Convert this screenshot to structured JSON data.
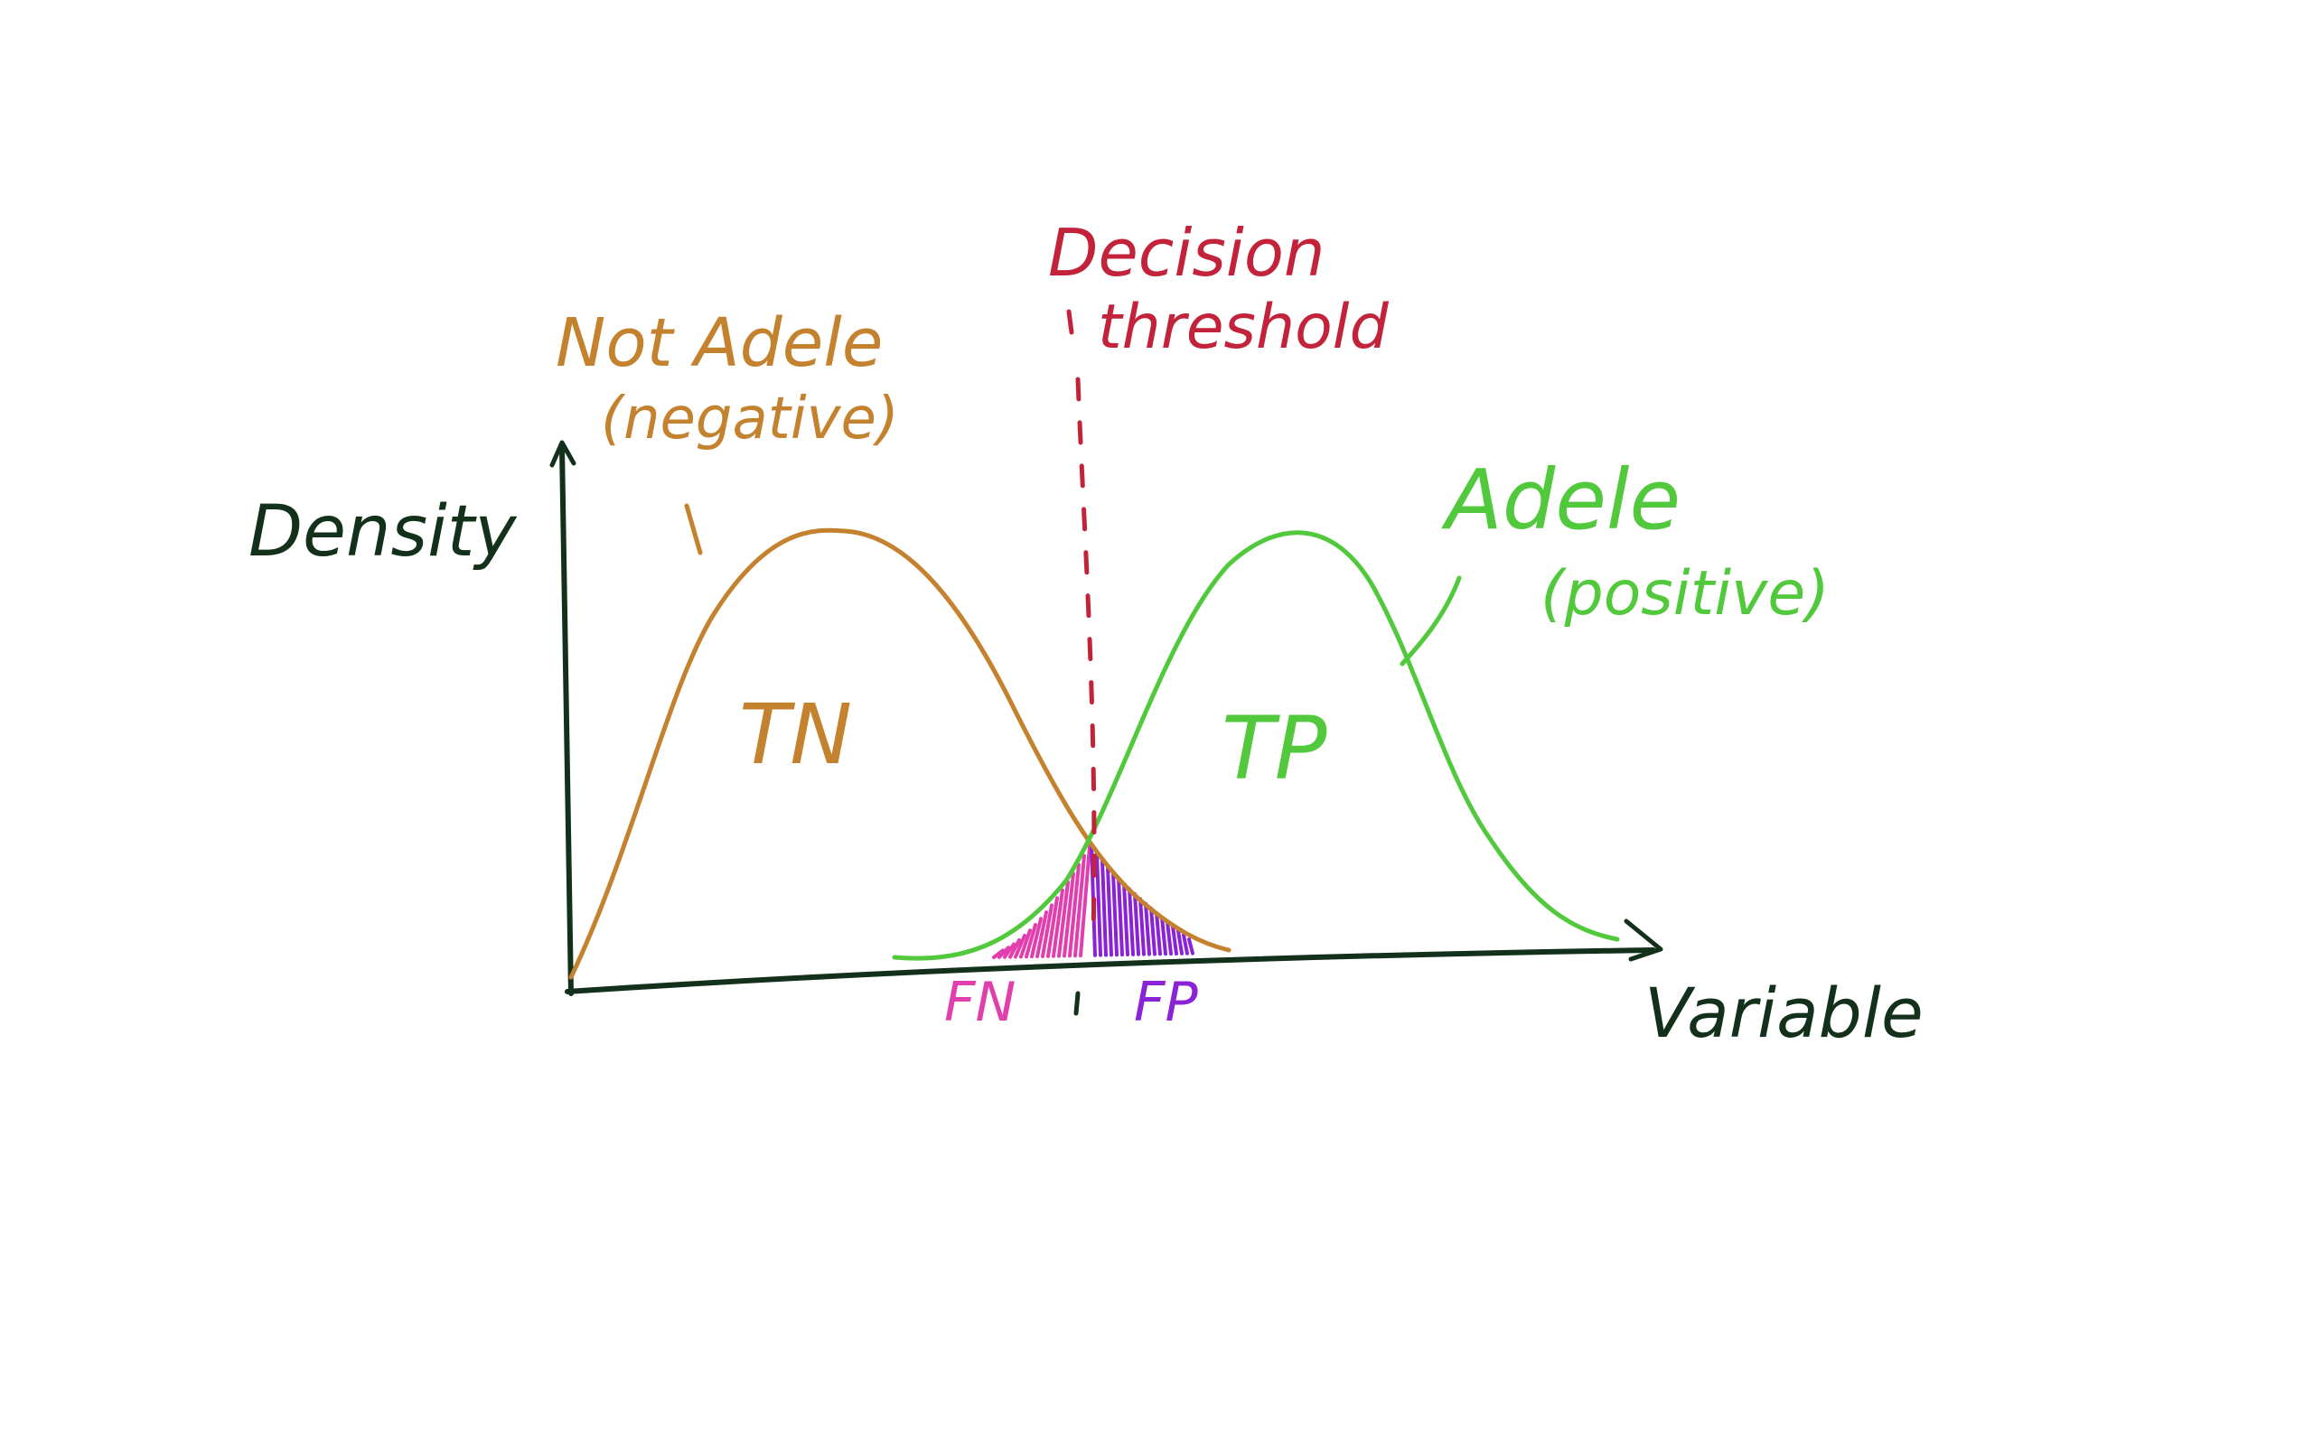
{
  "labels": {
    "y_axis": "Density",
    "x_axis": "Variable",
    "negative_title": "Not Adele",
    "negative_sub": "(negative)",
    "positive_title": "Adele",
    "positive_sub": "(positive)",
    "threshold_line1": "Decision",
    "threshold_line2": "threshold",
    "tn": "TN",
    "tp": "TP",
    "fn": "FN",
    "fp": "FP"
  },
  "colors": {
    "axes": "#13301a",
    "negative": "#c4822f",
    "positive": "#52c93c",
    "threshold": "#c2233a",
    "fn": "#e23fae",
    "fp": "#8a22d6"
  }
}
